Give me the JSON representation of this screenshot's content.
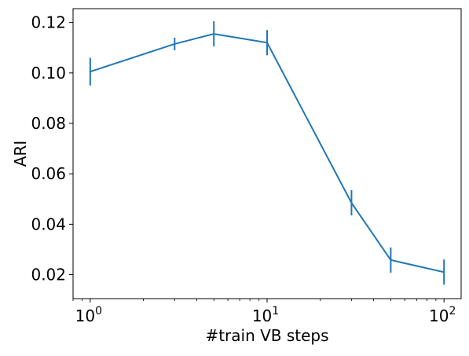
{
  "chart_data": {
    "type": "line",
    "title": "",
    "xlabel": "#train VB steps",
    "ylabel": "ARI",
    "xscale": "log",
    "xlim": [
      0.8,
      125
    ],
    "ylim": [
      0.0105,
      0.1255
    ],
    "grid": false,
    "legend": "none",
    "x_ticks": [
      {
        "value": 1,
        "base": "10",
        "exp": "0"
      },
      {
        "value": 10,
        "base": "10",
        "exp": "1"
      },
      {
        "value": 100,
        "base": "10",
        "exp": "2"
      }
    ],
    "y_ticks": [
      {
        "value": 0.02,
        "label": "0.02"
      },
      {
        "value": 0.04,
        "label": "0.04"
      },
      {
        "value": 0.06,
        "label": "0.06"
      },
      {
        "value": 0.08,
        "label": "0.08"
      },
      {
        "value": 0.1,
        "label": "0.10"
      },
      {
        "value": 0.12,
        "label": "0.12"
      }
    ],
    "series": [
      {
        "color": "#1f77b4",
        "x": [
          1,
          3,
          5,
          10,
          30,
          50,
          100
        ],
        "y": [
          0.1005,
          0.1115,
          0.1155,
          0.112,
          0.0485,
          0.0258,
          0.021
        ],
        "yerr": [
          0.0055,
          0.0025,
          0.005,
          0.005,
          0.005,
          0.005,
          0.005
        ]
      }
    ]
  }
}
